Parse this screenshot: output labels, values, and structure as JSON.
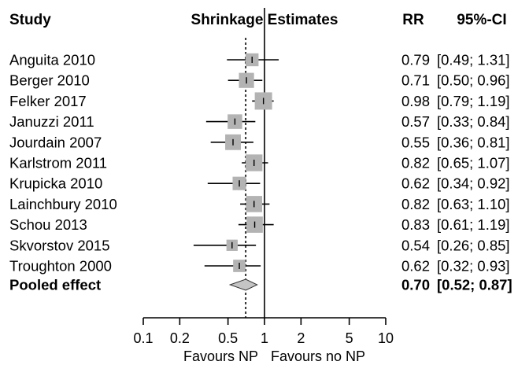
{
  "headers": {
    "study": "Study",
    "estimates": "Shrinkage Estimates",
    "rr": "RR",
    "ci": "95%-CI"
  },
  "axis": {
    "scale": "log",
    "ticks": [
      0.1,
      0.2,
      0.5,
      1,
      2,
      5,
      10
    ],
    "tick_labels": [
      "0.1",
      "0.2",
      "0.5",
      "1",
      "2",
      "5",
      "10"
    ],
    "label_left": "Favours NP",
    "label_right": "Favours no NP"
  },
  "colors": {
    "box": "#b3b3b3",
    "diamond": "#c4c4c4",
    "line": "#000000"
  },
  "chart_data": {
    "type": "forest",
    "x_scale": "log",
    "xlim": [
      0.1,
      10
    ],
    "null_value": 1,
    "pooled_reference_line": 0.7,
    "studies": [
      {
        "name": "Anguita 2010",
        "rr": 0.79,
        "lower": 0.49,
        "upper": 1.31,
        "rr_text": "0.79",
        "ci_text": "[0.49; 1.31]",
        "weight": 0.6
      },
      {
        "name": "Berger 2010",
        "rr": 0.71,
        "lower": 0.5,
        "upper": 0.96,
        "rr_text": "0.71",
        "ci_text": "[0.50; 0.96]",
        "weight": 0.8
      },
      {
        "name": "Felker 2017",
        "rr": 0.98,
        "lower": 0.79,
        "upper": 1.19,
        "rr_text": "0.98",
        "ci_text": "[0.79; 1.19]",
        "weight": 1.0
      },
      {
        "name": "Januzzi 2011",
        "rr": 0.57,
        "lower": 0.33,
        "upper": 0.84,
        "rr_text": "0.57",
        "ci_text": "[0.33; 0.84]",
        "weight": 0.75
      },
      {
        "name": "Jourdain 2007",
        "rr": 0.55,
        "lower": 0.36,
        "upper": 0.81,
        "rr_text": "0.55",
        "ci_text": "[0.36; 0.81]",
        "weight": 0.85
      },
      {
        "name": "Karlstrom 2011",
        "rr": 0.82,
        "lower": 0.65,
        "upper": 1.07,
        "rr_text": "0.82",
        "ci_text": "[0.65; 1.07]",
        "weight": 0.95
      },
      {
        "name": "Krupicka 2010",
        "rr": 0.62,
        "lower": 0.34,
        "upper": 0.92,
        "rr_text": "0.62",
        "ci_text": "[0.34; 0.92]",
        "weight": 0.65
      },
      {
        "name": "Lainchbury 2010",
        "rr": 0.82,
        "lower": 0.63,
        "upper": 1.1,
        "rr_text": "0.82",
        "ci_text": "[0.63; 1.10]",
        "weight": 0.9
      },
      {
        "name": "Schou 2013",
        "rr": 0.83,
        "lower": 0.61,
        "upper": 1.19,
        "rr_text": "0.83",
        "ci_text": "[0.61; 1.19]",
        "weight": 0.9
      },
      {
        "name": "Skvorstov 2015",
        "rr": 0.54,
        "lower": 0.26,
        "upper": 0.85,
        "rr_text": "0.54",
        "ci_text": "[0.26; 0.85]",
        "weight": 0.45
      },
      {
        "name": "Troughton 2000",
        "rr": 0.62,
        "lower": 0.32,
        "upper": 0.93,
        "rr_text": "0.62",
        "ci_text": "[0.32; 0.93]",
        "weight": 0.55
      }
    ],
    "pooled": {
      "name": "Pooled effect",
      "rr": 0.7,
      "lower": 0.52,
      "upper": 0.87,
      "rr_text": "0.70",
      "ci_text": "[0.52; 0.87]"
    }
  }
}
